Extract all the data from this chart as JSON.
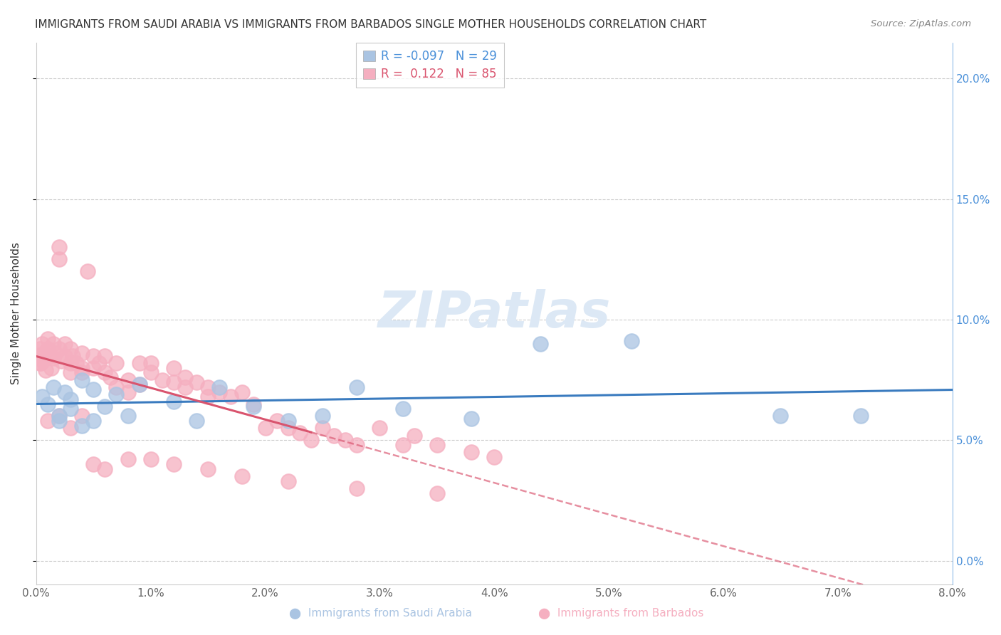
{
  "title": "IMMIGRANTS FROM SAUDI ARABIA VS IMMIGRANTS FROM BARBADOS SINGLE MOTHER HOUSEHOLDS CORRELATION CHART",
  "source": "Source: ZipAtlas.com",
  "ylabel": "Single Mother Households",
  "legend_blue_r": "-0.097",
  "legend_blue_n": "29",
  "legend_pink_r": "0.122",
  "legend_pink_n": "85",
  "blue_color": "#aac4e2",
  "pink_color": "#f5afc0",
  "blue_line_color": "#3a7bbf",
  "pink_line_color": "#d9546e",
  "pink_line_solid_color": "#d9546e",
  "watermark": "ZIPatlas",
  "xlim": [
    0,
    0.08
  ],
  "ylim": [
    -0.01,
    0.215
  ],
  "x_ticks": [
    0.0,
    0.01,
    0.02,
    0.03,
    0.04,
    0.05,
    0.06,
    0.07,
    0.08
  ],
  "y_ticks": [
    0.0,
    0.05,
    0.1,
    0.15,
    0.2
  ],
  "saudi_x": [
    0.0005,
    0.001,
    0.0015,
    0.002,
    0.002,
    0.0025,
    0.003,
    0.003,
    0.004,
    0.004,
    0.005,
    0.005,
    0.006,
    0.007,
    0.008,
    0.009,
    0.012,
    0.014,
    0.016,
    0.019,
    0.022,
    0.025,
    0.028,
    0.032,
    0.038,
    0.044,
    0.052,
    0.065,
    0.072
  ],
  "saudi_y": [
    0.068,
    0.065,
    0.072,
    0.06,
    0.058,
    0.07,
    0.063,
    0.067,
    0.075,
    0.056,
    0.071,
    0.058,
    0.064,
    0.069,
    0.06,
    0.073,
    0.066,
    0.058,
    0.072,
    0.064,
    0.058,
    0.06,
    0.072,
    0.063,
    0.059,
    0.09,
    0.091,
    0.06,
    0.06
  ],
  "barbados_x": [
    0.0002,
    0.0003,
    0.0004,
    0.0005,
    0.0006,
    0.0007,
    0.0008,
    0.001,
    0.001,
    0.0012,
    0.0013,
    0.0015,
    0.0015,
    0.0017,
    0.002,
    0.002,
    0.002,
    0.0022,
    0.0025,
    0.0025,
    0.003,
    0.003,
    0.003,
    0.0032,
    0.0035,
    0.004,
    0.004,
    0.004,
    0.0045,
    0.005,
    0.005,
    0.0055,
    0.006,
    0.006,
    0.0065,
    0.007,
    0.007,
    0.008,
    0.008,
    0.009,
    0.009,
    0.01,
    0.01,
    0.011,
    0.012,
    0.012,
    0.013,
    0.013,
    0.014,
    0.015,
    0.015,
    0.016,
    0.017,
    0.018,
    0.019,
    0.02,
    0.021,
    0.022,
    0.023,
    0.024,
    0.025,
    0.026,
    0.027,
    0.028,
    0.03,
    0.032,
    0.033,
    0.035,
    0.038,
    0.04,
    0.0003,
    0.001,
    0.002,
    0.003,
    0.004,
    0.005,
    0.006,
    0.008,
    0.01,
    0.012,
    0.015,
    0.018,
    0.022,
    0.028,
    0.035
  ],
  "barbados_y": [
    0.085,
    0.088,
    0.082,
    0.09,
    0.083,
    0.086,
    0.079,
    0.088,
    0.092,
    0.085,
    0.08,
    0.09,
    0.084,
    0.086,
    0.13,
    0.125,
    0.088,
    0.083,
    0.09,
    0.085,
    0.082,
    0.088,
    0.078,
    0.085,
    0.082,
    0.086,
    0.08,
    0.078,
    0.12,
    0.085,
    0.08,
    0.082,
    0.085,
    0.078,
    0.076,
    0.082,
    0.072,
    0.075,
    0.07,
    0.082,
    0.073,
    0.078,
    0.082,
    0.075,
    0.08,
    0.074,
    0.076,
    0.072,
    0.074,
    0.072,
    0.068,
    0.07,
    0.068,
    0.07,
    0.065,
    0.055,
    0.058,
    0.055,
    0.053,
    0.05,
    0.055,
    0.052,
    0.05,
    0.048,
    0.055,
    0.048,
    0.052,
    0.048,
    0.045,
    0.043,
    0.082,
    0.058,
    0.06,
    0.055,
    0.06,
    0.04,
    0.038,
    0.042,
    0.042,
    0.04,
    0.038,
    0.035,
    0.033,
    0.03,
    0.028
  ]
}
